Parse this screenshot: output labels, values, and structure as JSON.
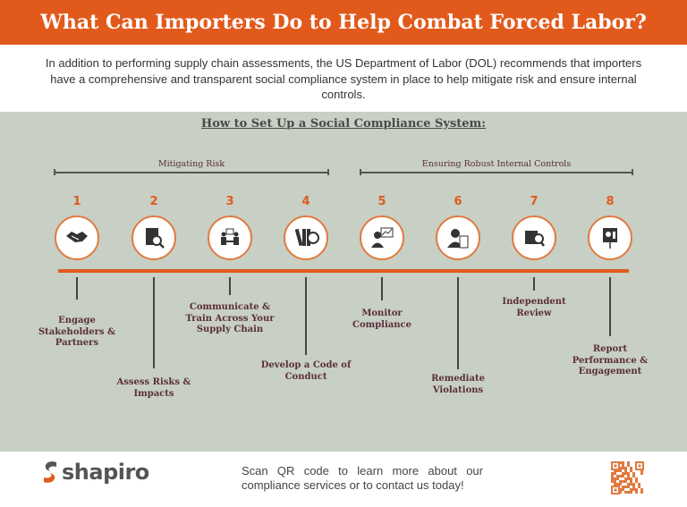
{
  "header": {
    "title": "What Can Importers Do to Help Combat Forced Labor?"
  },
  "intro": "In addition to performing supply chain assessments, the US Department of Labor (DOL) recommends that importers have a comprehensive and transparent social compliance system in place to help mitigate risk and ensure internal controls.",
  "subtitle": "How to Set Up a Social Compliance System:",
  "groups": [
    {
      "label": "Mitigating Risk"
    },
    {
      "label": "Ensuring Robust Internal Controls"
    }
  ],
  "steps": [
    {
      "number": "1",
      "label": "Engage Stakeholders & Partners",
      "icon": "handshake-icon"
    },
    {
      "number": "2",
      "label": "Assess Risks & Impacts",
      "icon": "document-magnifier-icon"
    },
    {
      "number": "3",
      "label": "Communicate & Train Across Your Supply Chain",
      "icon": "meeting-icon"
    },
    {
      "number": "4",
      "label": "Develop a Code of Conduct",
      "icon": "binders-clock-icon"
    },
    {
      "number": "5",
      "label": "Monitor Compliance",
      "icon": "person-chart-icon"
    },
    {
      "number": "6",
      "label": "Remediate Violations",
      "icon": "worker-checklist-icon"
    },
    {
      "number": "7",
      "label": "Independent Review",
      "icon": "box-magnifier-icon"
    },
    {
      "number": "8",
      "label": "Report Performance & Engagement",
      "icon": "presentation-board-icon"
    }
  ],
  "footer": {
    "logo": "shapiro",
    "cta": "Scan QR code to learn more about our compliance services or to contact us today!"
  },
  "colors": {
    "accent": "#e15a1c",
    "band": "#c8cfc4",
    "label": "#5a2e3a"
  }
}
